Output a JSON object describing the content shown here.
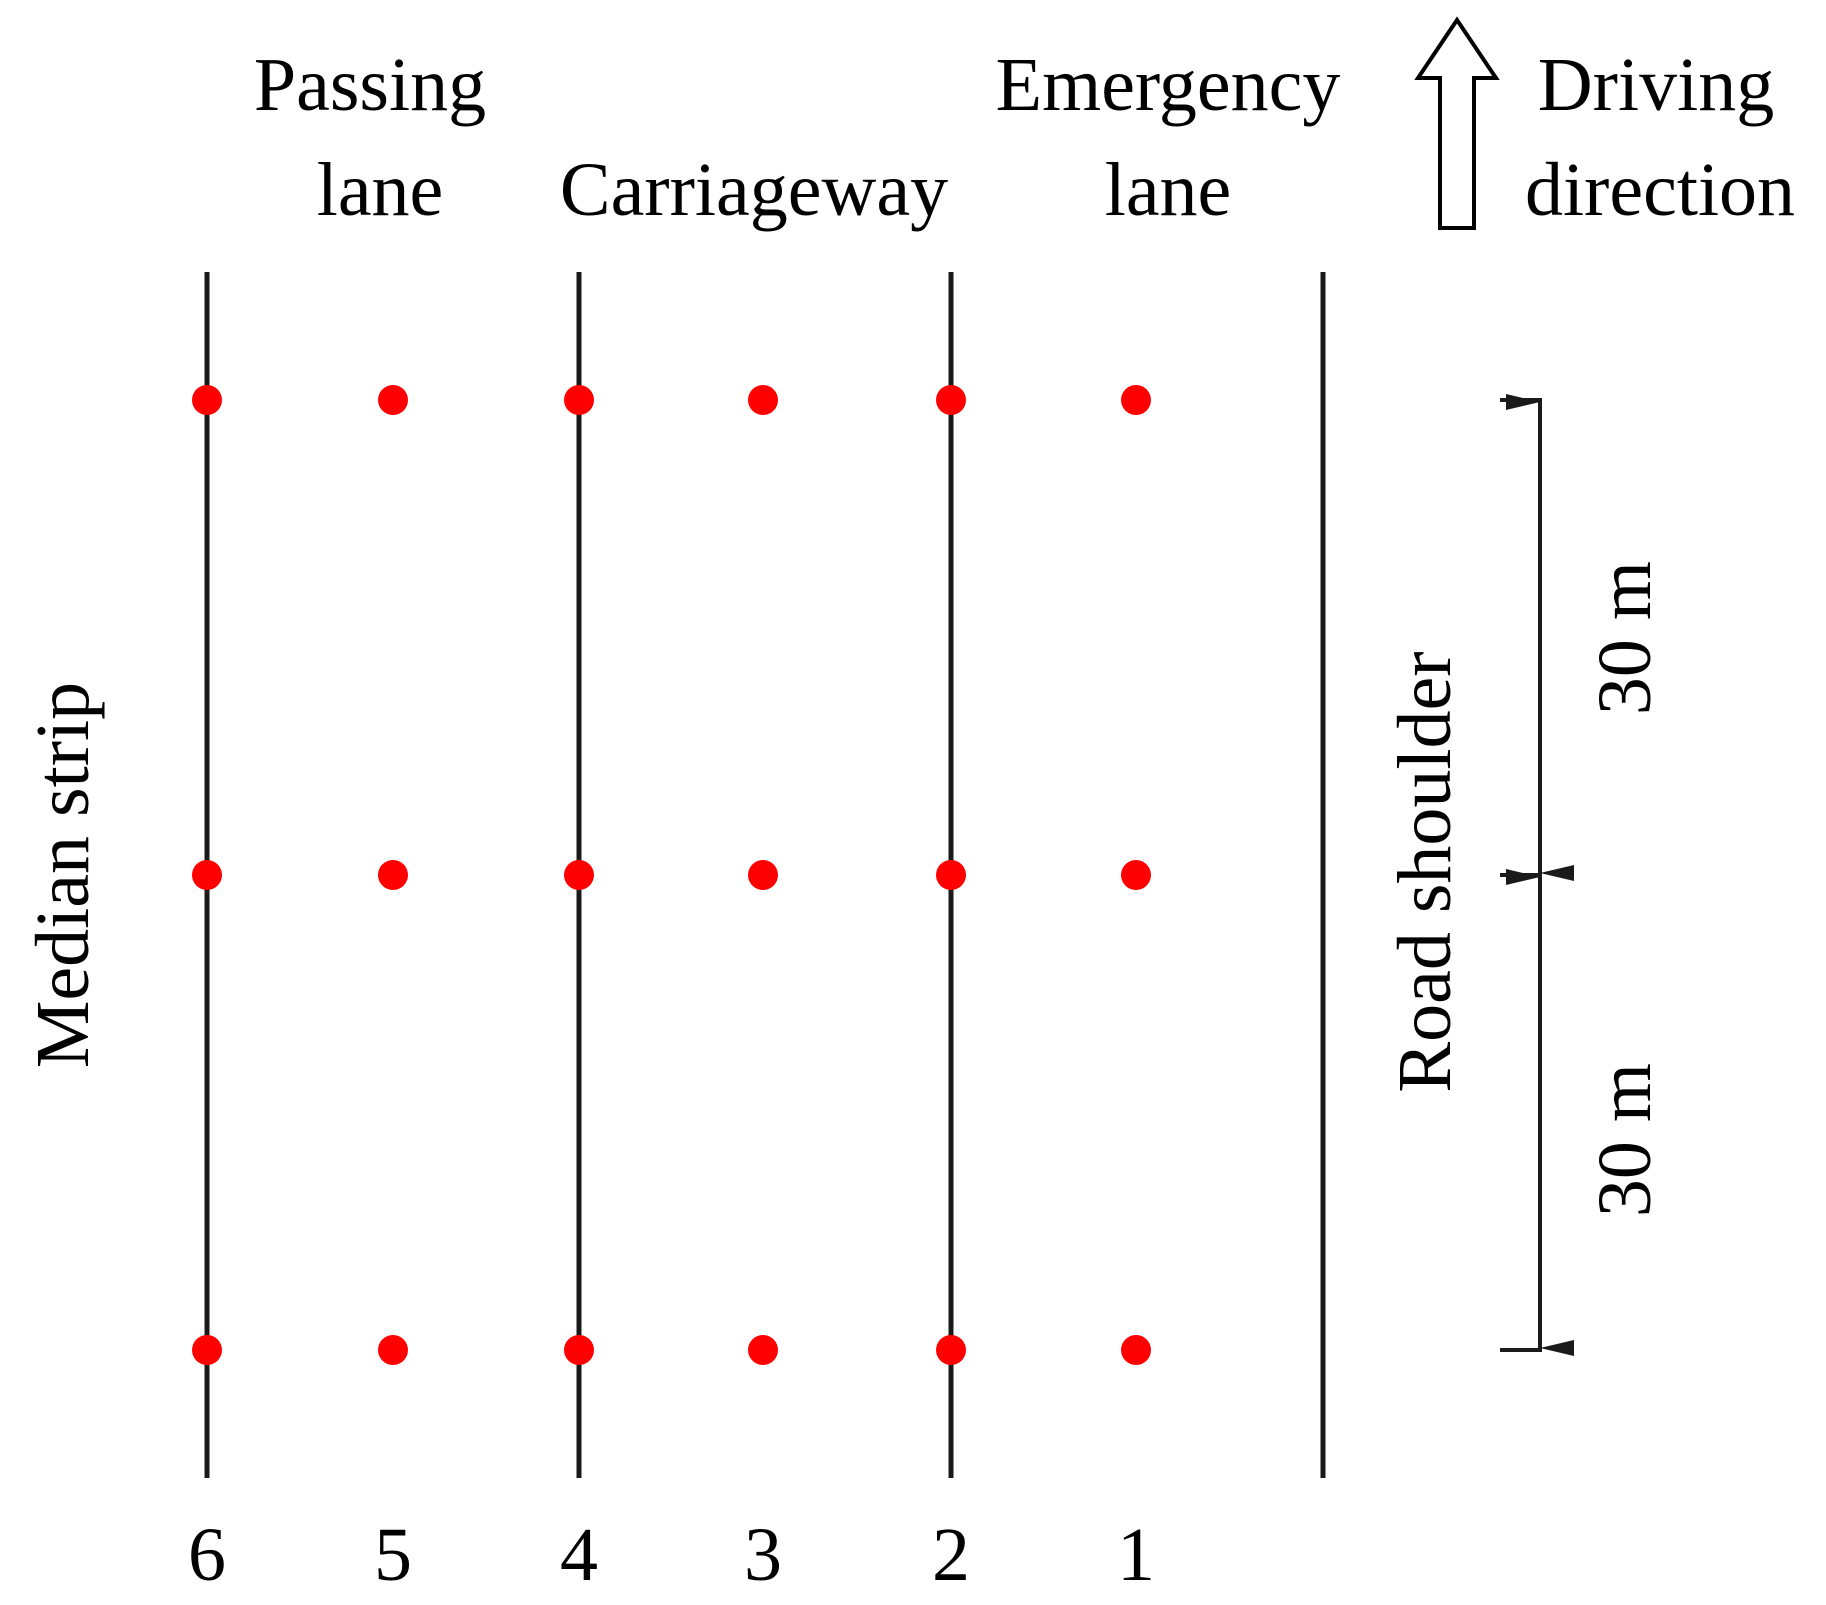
{
  "headers": {
    "passing_lane": [
      "Passing",
      "lane"
    ],
    "carriageway": "Carriageway",
    "emergency_lane": [
      "Emergency",
      "lane"
    ],
    "driving_direction": [
      "Driving",
      "direction"
    ]
  },
  "side_labels": {
    "median_strip": "Median strip",
    "road_shoulder": "Road shoulder"
  },
  "spacing": {
    "upper_label": "30 m",
    "lower_label": "30 m"
  },
  "lane_numbers": [
    "6",
    "5",
    "4",
    "3",
    "2",
    "1"
  ],
  "measurement_points": {
    "rows": 3,
    "columns": [
      "6",
      "5",
      "4",
      "3",
      "2",
      "1"
    ],
    "row_spacing_m": 30,
    "color": "#ff0000"
  },
  "colors": {
    "line": "#1a1a1a",
    "point": "#ff0000",
    "text": "#000000"
  }
}
